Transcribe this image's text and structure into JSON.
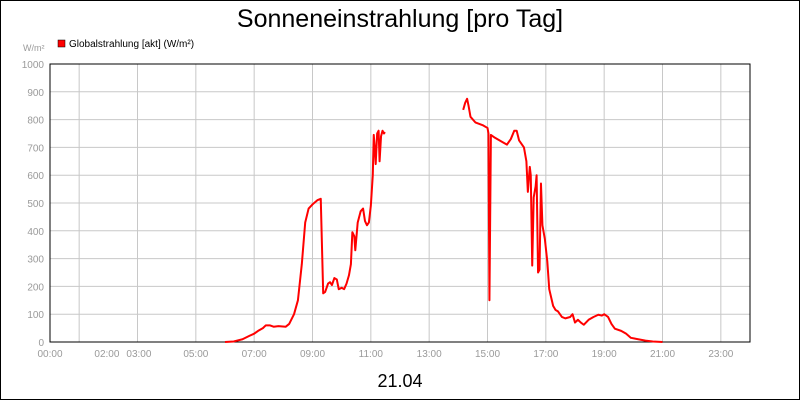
{
  "chart_data": {
    "type": "line",
    "title": "Sonneneinstrahlung [pro Tag]",
    "ylabel": "W/m²",
    "date_label": "21.04",
    "ylim": [
      0,
      1000
    ],
    "yticks": [
      0,
      100,
      200,
      300,
      400,
      500,
      600,
      700,
      800,
      900,
      1000
    ],
    "xlim": [
      "00:00",
      "24:00"
    ],
    "xticks": [
      "00:00",
      "02:00",
      "03:00",
      "05:00",
      "07:00",
      "09:00",
      "11:00",
      "13:00",
      "15:00",
      "17:00",
      "19:00",
      "21:00",
      "23:00"
    ],
    "grid": true,
    "legend_position": "top-left",
    "series": [
      {
        "name": "Globalstrahlung [akt] (W/m²)",
        "color": "#ff0000",
        "points": [
          [
            "00:00",
            0
          ],
          [
            "03:00",
            0
          ],
          [
            "06:00",
            0
          ],
          [
            "06:18",
            2
          ],
          [
            "06:36",
            10
          ],
          [
            "06:50",
            22
          ],
          [
            "07:00",
            30
          ],
          [
            "07:08",
            40
          ],
          [
            "07:18",
            50
          ],
          [
            "07:24",
            60
          ],
          [
            "07:32",
            60
          ],
          [
            "07:40",
            55
          ],
          [
            "07:50",
            57
          ],
          [
            "08:05",
            55
          ],
          [
            "08:12",
            65
          ],
          [
            "08:22",
            100
          ],
          [
            "08:30",
            150
          ],
          [
            "08:38",
            280
          ],
          [
            "08:45",
            430
          ],
          [
            "08:52",
            480
          ],
          [
            "09:00",
            495
          ],
          [
            "09:10",
            510
          ],
          [
            "09:17",
            515
          ],
          [
            "09:22",
            175
          ],
          [
            "09:26",
            180
          ],
          [
            "09:32",
            210
          ],
          [
            "09:36",
            215
          ],
          [
            "09:40",
            205
          ],
          [
            "09:45",
            230
          ],
          [
            "09:50",
            225
          ],
          [
            "09:54",
            190
          ],
          [
            "10:00",
            195
          ],
          [
            "10:05",
            190
          ],
          [
            "10:10",
            210
          ],
          [
            "10:15",
            240
          ],
          [
            "10:19",
            280
          ],
          [
            "10:22",
            395
          ],
          [
            "10:26",
            380
          ],
          [
            "10:28",
            330
          ],
          [
            "10:33",
            430
          ],
          [
            "10:39",
            470
          ],
          [
            "10:44",
            480
          ],
          [
            "10:48",
            435
          ],
          [
            "10:52",
            420
          ],
          [
            "10:56",
            430
          ],
          [
            "11:00",
            490
          ],
          [
            "11:04",
            600
          ],
          [
            "11:06",
            745
          ],
          [
            "11:08",
            700
          ],
          [
            "11:10",
            640
          ],
          [
            "11:13",
            750
          ],
          [
            "11:16",
            760
          ],
          [
            "11:18",
            650
          ],
          [
            "11:21",
            740
          ],
          [
            "11:24",
            760
          ],
          [
            "11:27",
            750
          ],
          [
            "11:29",
            755
          ],
          [
            "14:10",
            835
          ],
          [
            "14:14",
            860
          ],
          [
            "14:18",
            875
          ],
          [
            "14:21",
            850
          ],
          [
            "14:25",
            810
          ],
          [
            "14:35",
            790
          ],
          [
            "14:50",
            780
          ],
          [
            "15:00",
            770
          ],
          [
            "15:02",
            750
          ],
          [
            "15:04",
            150
          ],
          [
            "15:07",
            745
          ],
          [
            "15:15",
            735
          ],
          [
            "15:30",
            720
          ],
          [
            "15:40",
            710
          ],
          [
            "15:48",
            730
          ],
          [
            "15:55",
            760
          ],
          [
            "16:00",
            760
          ],
          [
            "16:05",
            725
          ],
          [
            "16:15",
            700
          ],
          [
            "16:20",
            650
          ],
          [
            "16:23",
            540
          ],
          [
            "16:27",
            630
          ],
          [
            "16:29",
            600
          ],
          [
            "16:32",
            275
          ],
          [
            "16:35",
            520
          ],
          [
            "16:39",
            560
          ],
          [
            "16:41",
            600
          ],
          [
            "16:44",
            250
          ],
          [
            "16:47",
            260
          ],
          [
            "16:50",
            570
          ],
          [
            "16:53",
            420
          ],
          [
            "16:58",
            370
          ],
          [
            "17:03",
            290
          ],
          [
            "17:07",
            190
          ],
          [
            "17:15",
            130
          ],
          [
            "17:20",
            115
          ],
          [
            "17:25",
            110
          ],
          [
            "17:33",
            90
          ],
          [
            "17:40",
            85
          ],
          [
            "17:50",
            90
          ],
          [
            "17:55",
            100
          ],
          [
            "18:00",
            70
          ],
          [
            "18:06",
            80
          ],
          [
            "18:12",
            70
          ],
          [
            "18:18",
            62
          ],
          [
            "18:28",
            80
          ],
          [
            "18:38",
            90
          ],
          [
            "18:48",
            98
          ],
          [
            "18:55",
            95
          ],
          [
            "19:00",
            100
          ],
          [
            "19:08",
            90
          ],
          [
            "19:15",
            65
          ],
          [
            "19:22",
            48
          ],
          [
            "19:35",
            40
          ],
          [
            "19:45",
            30
          ],
          [
            "19:55",
            15
          ],
          [
            "20:10",
            10
          ],
          [
            "20:25",
            5
          ],
          [
            "20:40",
            2
          ],
          [
            "21:00",
            0
          ],
          [
            "24:00",
            0
          ]
        ]
      }
    ]
  }
}
